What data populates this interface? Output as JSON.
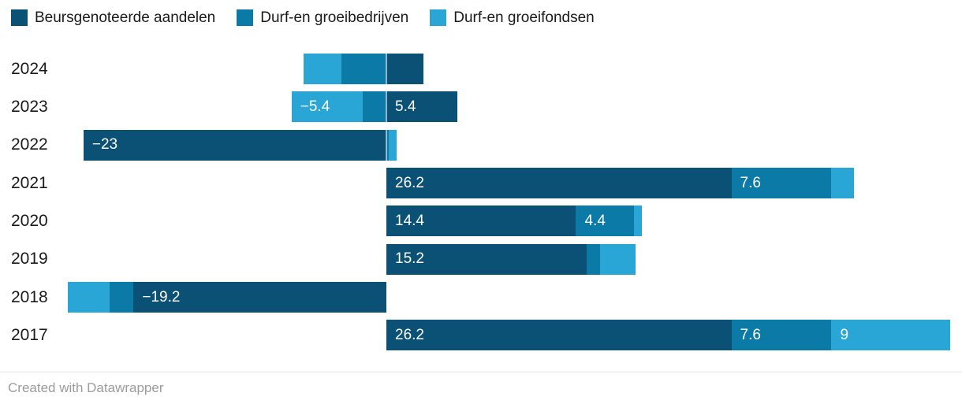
{
  "footer": {
    "credit": "Created with Datawrapper"
  },
  "colors": {
    "background": "#ffffff",
    "category_text": "#1a1a1a",
    "bar_label_text": "#ffffff",
    "footer_text": "#9c9c9c",
    "series_dark": "#0b5176",
    "series_medium": "#0b7aa6",
    "series_light": "#29a5d6"
  },
  "chart_data": {
    "type": "bar",
    "orientation": "horizontal",
    "stacked": true,
    "diverging": true,
    "grid": false,
    "x_axis_hidden": true,
    "legend_position": "top",
    "value_label_style": "inside segment, left-aligned, white; hidden when segment too small",
    "xlim": [
      -29,
      44
    ],
    "categories": [
      "2024",
      "2023",
      "2022",
      "2021",
      "2020",
      "2019",
      "2018",
      "2017"
    ],
    "series": [
      {
        "name": "Beursgenoteerde aandelen",
        "color": "#0b5176",
        "values": [
          2.8,
          5.4,
          -23,
          26.2,
          14.4,
          15.2,
          -19.2,
          26.2
        ],
        "labels": [
          "",
          "5.4",
          "−23",
          "26.2",
          "14.4",
          "15.2",
          "−19.2",
          "26.2"
        ]
      },
      {
        "name": "Durf-en groeibedrijven",
        "color": "#0b7aa6",
        "values": [
          -3.4,
          -1.8,
          0.2,
          7.6,
          4.4,
          1.0,
          -1.8,
          7.6
        ],
        "labels": [
          "",
          "",
          "",
          "7.6",
          "4.4",
          "",
          "",
          "7.6"
        ]
      },
      {
        "name": "Durf-en groeifondsen",
        "color": "#29a5d6",
        "values": [
          -2.9,
          -5.4,
          0.6,
          1.7,
          0.6,
          2.7,
          -3.2,
          9
        ],
        "labels": [
          "",
          "−5.4",
          "",
          "",
          "",
          "",
          "",
          "9"
        ]
      }
    ]
  }
}
